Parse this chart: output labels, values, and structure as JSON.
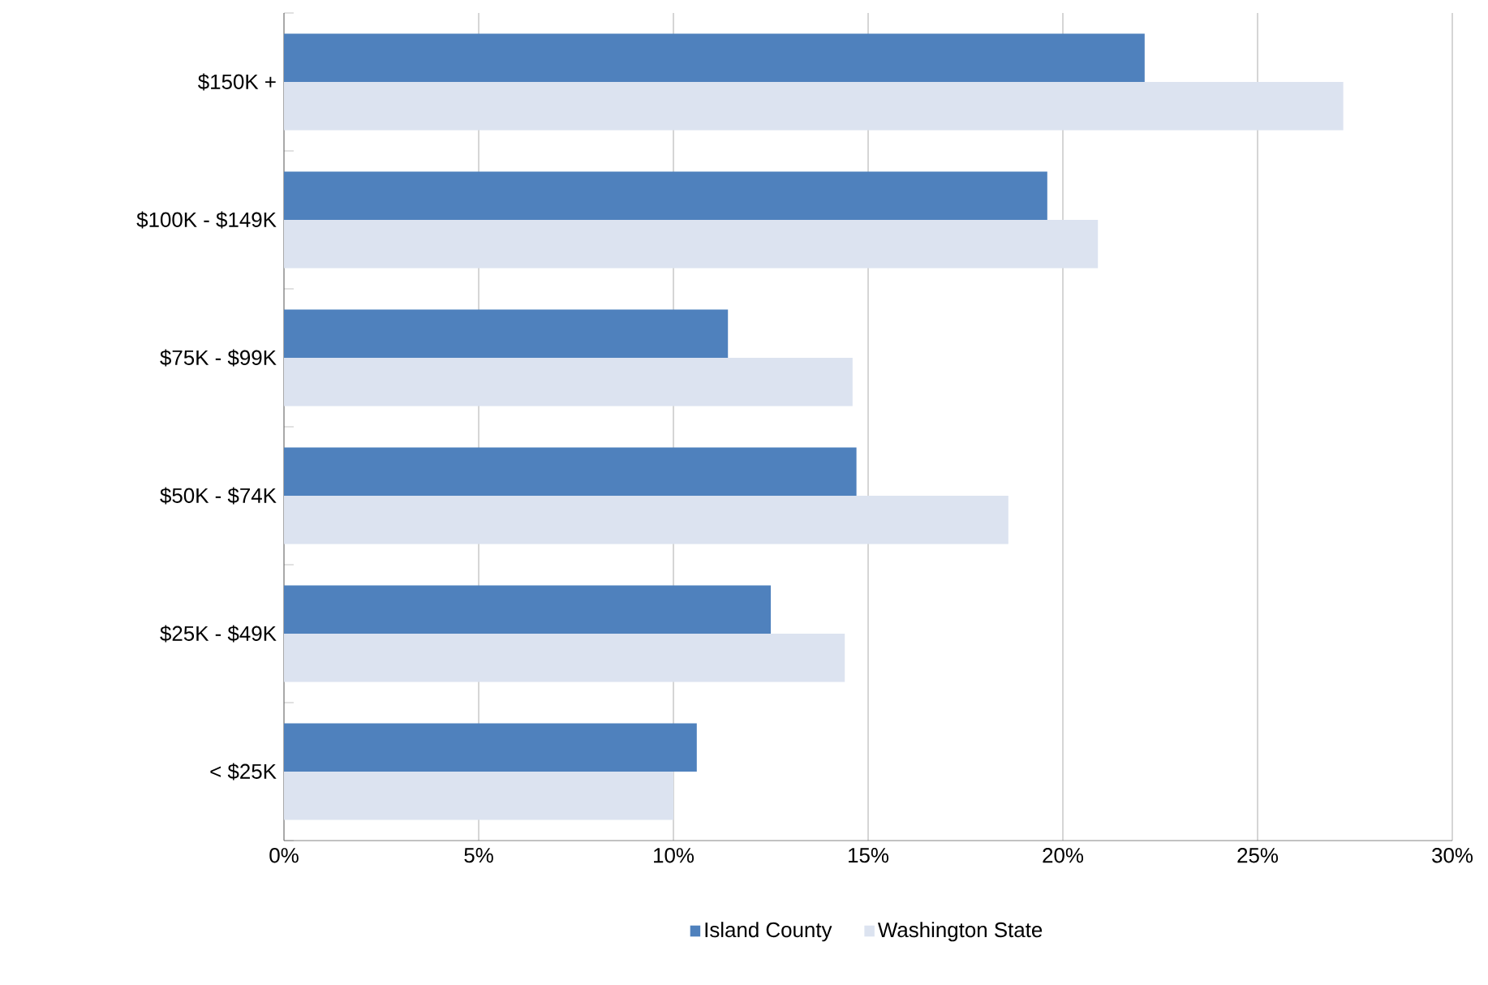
{
  "chart_data": {
    "type": "bar",
    "orientation": "horizontal",
    "categories": [
      "$150K +",
      "$100K - $149K",
      "$75K - $99K",
      "$50K - $74K",
      "$25K - $49K",
      "< $25K"
    ],
    "series": [
      {
        "name": "Island County",
        "color": "#4f81bd",
        "values": [
          22.1,
          19.6,
          11.4,
          14.7,
          12.5,
          10.6
        ]
      },
      {
        "name": "Washington State",
        "color": "#dce3f0",
        "values": [
          27.2,
          20.9,
          14.6,
          18.6,
          14.4,
          10.0
        ]
      }
    ],
    "xlim": [
      0,
      30
    ],
    "xticks": [
      {
        "value": 0,
        "label": "0%"
      },
      {
        "value": 5,
        "label": "5%"
      },
      {
        "value": 10,
        "label": "10%"
      },
      {
        "value": 15,
        "label": "15%"
      },
      {
        "value": 20,
        "label": "20%"
      },
      {
        "value": 25,
        "label": "25%"
      },
      {
        "value": 30,
        "label": "30%"
      }
    ],
    "grid": "x",
    "legend": "bottom"
  }
}
